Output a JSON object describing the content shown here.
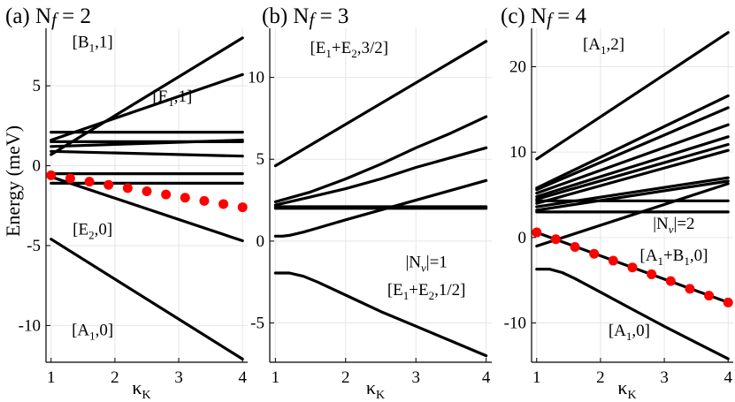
{
  "figure": {
    "ylabel": "Energy (meV)",
    "xlabel": "κ",
    "xlabel_sub": "K"
  },
  "chart_data": [
    {
      "type": "line",
      "title": "(a) N",
      "title_italic": "f",
      "title_rest": " = 2",
      "xlim": [
        0.92,
        4.08
      ],
      "ylim": [
        -12.3,
        8.6
      ],
      "xticks": [
        1,
        2,
        3,
        4
      ],
      "yticks": [
        -10,
        -5,
        0,
        5
      ],
      "grid": true,
      "series": [
        {
          "x": [
            1,
            4
          ],
          "y": [
            0.7,
            8.0
          ]
        },
        {
          "x": [
            1,
            4
          ],
          "y": [
            1.6,
            5.7
          ]
        },
        {
          "x": [
            1,
            4
          ],
          "y": [
            2.1,
            2.1
          ]
        },
        {
          "x": [
            1,
            4
          ],
          "y": [
            1.5,
            1.5
          ]
        },
        {
          "x": [
            1,
            4
          ],
          "y": [
            1.2,
            1.6
          ]
        },
        {
          "x": [
            1,
            4
          ],
          "y": [
            0.9,
            0.6
          ]
        },
        {
          "x": [
            1,
            4
          ],
          "y": [
            -0.5,
            -0.5
          ]
        },
        {
          "x": [
            1,
            4
          ],
          "y": [
            -1.1,
            -1.1
          ]
        },
        {
          "x": [
            1,
            4
          ],
          "y": [
            -0.7,
            -4.7
          ]
        },
        {
          "x": [
            1,
            4
          ],
          "y": [
            -4.6,
            -12.1
          ]
        }
      ],
      "points": {
        "color": "#ff0000",
        "x": [
          1.0,
          1.3,
          1.6,
          1.9,
          2.2,
          2.5,
          2.8,
          3.1,
          3.4,
          3.7,
          4.0
        ],
        "y": [
          -0.6,
          -0.8,
          -1.0,
          -1.2,
          -1.4,
          -1.6,
          -1.8,
          -2.0,
          -2.2,
          -2.4,
          -2.6
        ]
      },
      "annotations": [
        {
          "main": "[B",
          "sub": "1",
          "rest": ",1]",
          "x": 1.65,
          "y": 7.4
        },
        {
          "main": "[E",
          "sub": "1",
          "rest": ",1]",
          "x": 2.9,
          "y": 4.0
        },
        {
          "main": "[E",
          "sub": "2",
          "rest": ",0]",
          "x": 1.65,
          "y": -4.3
        },
        {
          "main": "[A",
          "sub": "1",
          "rest": ",0]",
          "x": 1.65,
          "y": -10.6
        }
      ]
    },
    {
      "type": "line",
      "title": "(b) N",
      "title_italic": "f",
      "title_rest": " = 3",
      "xlim": [
        0.92,
        4.08
      ],
      "ylim": [
        -7.4,
        13.0
      ],
      "xticks": [
        1,
        2,
        3,
        4
      ],
      "yticks": [
        -5,
        0,
        5,
        10
      ],
      "grid": true,
      "series": [
        {
          "x": [
            1,
            4
          ],
          "y": [
            4.6,
            12.2
          ]
        },
        {
          "x": [
            1,
            1.5,
            2,
            2.5,
            3,
            3.5,
            4
          ],
          "y": [
            2.4,
            3.0,
            3.8,
            4.7,
            5.7,
            6.6,
            7.6
          ]
        },
        {
          "x": [
            1,
            1.5,
            2,
            2.5,
            3,
            3.5,
            4
          ],
          "y": [
            2.2,
            2.7,
            3.2,
            3.8,
            4.5,
            5.1,
            5.7
          ]
        },
        {
          "x": [
            1,
            4
          ],
          "y": [
            2.0,
            2.0
          ]
        },
        {
          "x": [
            1,
            4
          ],
          "y": [
            2.1,
            2.1
          ]
        },
        {
          "x": [
            1,
            1.1,
            1.2,
            1.4,
            1.6,
            2,
            2.5,
            3,
            3.5,
            4
          ],
          "y": [
            0.3,
            0.3,
            0.35,
            0.55,
            0.8,
            1.3,
            1.9,
            2.5,
            3.1,
            3.7
          ]
        },
        {
          "x": [
            1,
            1.2,
            1.4,
            1.6,
            2,
            2.5,
            3,
            3.5,
            4
          ],
          "y": [
            -1.95,
            -1.95,
            -2.15,
            -2.5,
            -3.3,
            -4.3,
            -5.2,
            -6.1,
            -7.0
          ]
        }
      ],
      "annotations": [
        {
          "html": "[E1+E2,3/2]",
          "main": "[E",
          "sub": "1",
          "mid": "+E",
          "sub2": "2",
          "rest": ",3/2]",
          "x": 2.05,
          "y": 11.5
        },
        {
          "nv": true,
          "main": "|N",
          "sub": "v",
          "rest": "|=1",
          "x": 3.15,
          "y": -1.6
        },
        {
          "main": "[E",
          "sub": "1",
          "mid": "+E",
          "sub2": "2",
          "rest": ",1/2]",
          "x": 3.15,
          "y": -3.3
        }
      ]
    },
    {
      "type": "line",
      "title": "(c) N",
      "title_italic": "f",
      "title_rest": " = 4",
      "xlim": [
        0.92,
        4.08
      ],
      "ylim": [
        -14.6,
        24.5
      ],
      "xticks": [
        1,
        2,
        3,
        4
      ],
      "yticks": [
        -10,
        0,
        10,
        20
      ],
      "grid": true,
      "series": [
        {
          "x": [
            1,
            4
          ],
          "y": [
            9.2,
            24.0
          ]
        },
        {
          "x": [
            1,
            4
          ],
          "y": [
            5.8,
            16.6
          ]
        },
        {
          "x": [
            1,
            4
          ],
          "y": [
            5.6,
            15.2
          ]
        },
        {
          "x": [
            1,
            4
          ],
          "y": [
            5.2,
            13.2
          ]
        },
        {
          "x": [
            1,
            4
          ],
          "y": [
            4.8,
            11.8
          ]
        },
        {
          "x": [
            1,
            4
          ],
          "y": [
            4.5,
            10.9
          ]
        },
        {
          "x": [
            1,
            4
          ],
          "y": [
            4.0,
            10.2
          ]
        },
        {
          "x": [
            1,
            4
          ],
          "y": [
            3.6,
            7.0
          ]
        },
        {
          "x": [
            1,
            4
          ],
          "y": [
            3.2,
            6.6
          ]
        },
        {
          "x": [
            1,
            4
          ],
          "y": [
            4.3,
            4.3
          ]
        },
        {
          "x": [
            1,
            4
          ],
          "y": [
            3.0,
            3.0
          ]
        },
        {
          "x": [
            1,
            4
          ],
          "y": [
            -1.0,
            6.3
          ]
        },
        {
          "x": [
            1,
            4
          ],
          "y": [
            0.6,
            -7.6
          ]
        },
        {
          "x": [
            1,
            1.2,
            1.4,
            1.6,
            2,
            2.5,
            3,
            3.5,
            4
          ],
          "y": [
            -3.7,
            -3.7,
            -4.1,
            -4.8,
            -6.4,
            -8.4,
            -10.4,
            -12.3,
            -14.2
          ]
        }
      ],
      "points": {
        "color": "#ff0000",
        "x": [
          1.0,
          1.3,
          1.6,
          1.9,
          2.2,
          2.5,
          2.8,
          3.1,
          3.4,
          3.7,
          4.0
        ],
        "y": [
          0.6,
          -0.2,
          -1.1,
          -1.9,
          -2.7,
          -3.5,
          -4.3,
          -5.1,
          -6.0,
          -6.8,
          -7.6
        ]
      },
      "annotations": [
        {
          "main": "[A",
          "sub": "1",
          "rest": ",2]",
          "x": 2.05,
          "y": 22.0
        },
        {
          "nv": true,
          "main": "|N",
          "sub": "v",
          "rest": "|=2",
          "x": 3.15,
          "y": 1.0
        },
        {
          "main": "[A",
          "sub": "1",
          "mid": "+B",
          "sub2": "1",
          "rest": ",0]",
          "x": 3.15,
          "y": -2.7
        },
        {
          "main": "[A",
          "sub": "1",
          "rest": ",0]",
          "x": 2.45,
          "y": -11.5
        }
      ]
    }
  ]
}
